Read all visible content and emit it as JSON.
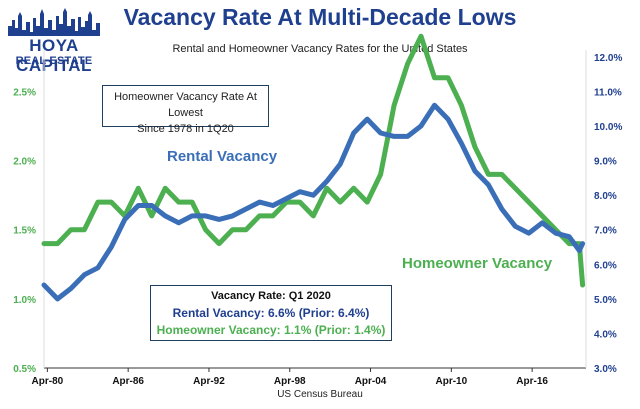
{
  "logo": {
    "main": "HOYA CAPITAL",
    "sub": "REAL ESTATE"
  },
  "title": "Vacancy Rate At Multi-Decade Lows",
  "subtitle": "Rental and Homeowner Vacancy Rates for the United States",
  "source": "US Census Bureau",
  "note_box": {
    "line1": "Homeowner Vacancy Rate At Lowest",
    "line2": "Since 1978 in 1Q20"
  },
  "stats_box": {
    "heading": "Vacancy Rate: Q1 2020",
    "rental": "Rental Vacancy: 6.6% (Prior: 6.4%)",
    "homeowner": "Homeowner Vacancy: 1.1% (Prior: 1.4%)"
  },
  "series_labels": {
    "rental": "Rental Vacancy",
    "homeowner": "Homeowner Vacancy"
  },
  "colors": {
    "rental": "#3a6fb8",
    "homeowner": "#4caf50",
    "axis": "#1f3f8f"
  },
  "chart_data": {
    "type": "line",
    "x_range": [
      1980.0,
      2020.25
    ],
    "x_ticks": [
      {
        "label": "Apr-80",
        "x": 1980.25
      },
      {
        "label": "Apr-86",
        "x": 1986.25
      },
      {
        "label": "Apr-92",
        "x": 1992.25
      },
      {
        "label": "Apr-98",
        "x": 1998.25
      },
      {
        "label": "Apr-04",
        "x": 2004.25
      },
      {
        "label": "Apr-10",
        "x": 2010.25
      },
      {
        "label": "Apr-16",
        "x": 2016.25
      }
    ],
    "y_left": {
      "range": [
        0.5,
        2.8
      ],
      "ticks": [
        "0.5%",
        "1.0%",
        "1.5%",
        "2.0%",
        "2.5%"
      ],
      "values": [
        0.5,
        1.0,
        1.5,
        2.0,
        2.5
      ]
    },
    "y_right": {
      "range": [
        3.0,
        12.2
      ],
      "ticks": [
        "3.0%",
        "4.0%",
        "5.0%",
        "6.0%",
        "7.0%",
        "8.0%",
        "9.0%",
        "10.0%",
        "11.0%",
        "12.0%"
      ],
      "values": [
        3,
        4,
        5,
        6,
        7,
        8,
        9,
        10,
        11,
        12
      ]
    },
    "series": [
      {
        "name": "Homeowner Vacancy",
        "axis": "left",
        "points": [
          [
            1980.0,
            1.4
          ],
          [
            1981.0,
            1.4
          ],
          [
            1982.0,
            1.5
          ],
          [
            1983.0,
            1.5
          ],
          [
            1984.0,
            1.7
          ],
          [
            1985.0,
            1.7
          ],
          [
            1986.0,
            1.6
          ],
          [
            1987.0,
            1.8
          ],
          [
            1988.0,
            1.6
          ],
          [
            1989.0,
            1.8
          ],
          [
            1990.0,
            1.7
          ],
          [
            1991.0,
            1.7
          ],
          [
            1992.0,
            1.5
          ],
          [
            1993.0,
            1.4
          ],
          [
            1994.0,
            1.5
          ],
          [
            1995.0,
            1.5
          ],
          [
            1996.0,
            1.6
          ],
          [
            1997.0,
            1.6
          ],
          [
            1998.0,
            1.7
          ],
          [
            1999.0,
            1.7
          ],
          [
            2000.0,
            1.6
          ],
          [
            2001.0,
            1.8
          ],
          [
            2002.0,
            1.7
          ],
          [
            2003.0,
            1.8
          ],
          [
            2004.0,
            1.7
          ],
          [
            2005.0,
            1.9
          ],
          [
            2006.0,
            2.4
          ],
          [
            2007.0,
            2.7
          ],
          [
            2008.0,
            2.9
          ],
          [
            2009.0,
            2.6
          ],
          [
            2010.0,
            2.6
          ],
          [
            2011.0,
            2.4
          ],
          [
            2012.0,
            2.1
          ],
          [
            2013.0,
            1.9
          ],
          [
            2014.0,
            1.9
          ],
          [
            2015.0,
            1.8
          ],
          [
            2016.0,
            1.7
          ],
          [
            2017.0,
            1.6
          ],
          [
            2018.0,
            1.5
          ],
          [
            2019.0,
            1.4
          ],
          [
            2019.75,
            1.4
          ],
          [
            2020.0,
            1.1
          ]
        ]
      },
      {
        "name": "Rental Vacancy",
        "axis": "right",
        "points": [
          [
            1980.0,
            5.4
          ],
          [
            1981.0,
            5.0
          ],
          [
            1982.0,
            5.3
          ],
          [
            1983.0,
            5.7
          ],
          [
            1984.0,
            5.9
          ],
          [
            1985.0,
            6.5
          ],
          [
            1986.0,
            7.3
          ],
          [
            1987.0,
            7.7
          ],
          [
            1988.0,
            7.7
          ],
          [
            1989.0,
            7.4
          ],
          [
            1990.0,
            7.2
          ],
          [
            1991.0,
            7.4
          ],
          [
            1992.0,
            7.4
          ],
          [
            1993.0,
            7.3
          ],
          [
            1994.0,
            7.4
          ],
          [
            1995.0,
            7.6
          ],
          [
            1996.0,
            7.8
          ],
          [
            1997.0,
            7.7
          ],
          [
            1998.0,
            7.9
          ],
          [
            1999.0,
            8.1
          ],
          [
            2000.0,
            8.0
          ],
          [
            2001.0,
            8.4
          ],
          [
            2002.0,
            8.9
          ],
          [
            2003.0,
            9.8
          ],
          [
            2004.0,
            10.2
          ],
          [
            2005.0,
            9.8
          ],
          [
            2006.0,
            9.7
          ],
          [
            2007.0,
            9.7
          ],
          [
            2008.0,
            10.0
          ],
          [
            2009.0,
            10.6
          ],
          [
            2010.0,
            10.2
          ],
          [
            2011.0,
            9.5
          ],
          [
            2012.0,
            8.7
          ],
          [
            2013.0,
            8.3
          ],
          [
            2014.0,
            7.6
          ],
          [
            2015.0,
            7.1
          ],
          [
            2016.0,
            6.9
          ],
          [
            2017.0,
            7.2
          ],
          [
            2018.0,
            6.9
          ],
          [
            2019.0,
            6.8
          ],
          [
            2019.75,
            6.4
          ],
          [
            2020.0,
            6.6
          ]
        ]
      }
    ]
  }
}
